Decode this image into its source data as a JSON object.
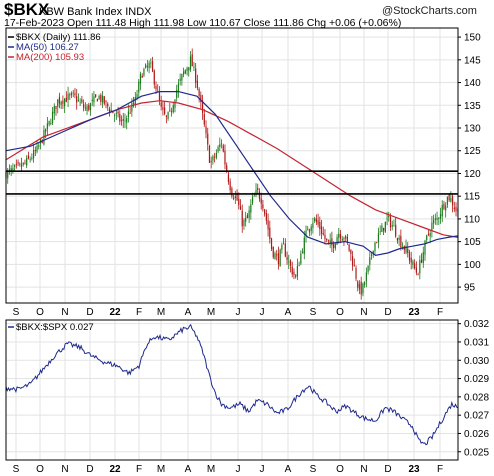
{
  "header": {
    "symbol": "$BKX",
    "name": "KBW Bank Index",
    "exchange": "INDX",
    "watermark": "@StockCharts.com",
    "quote_line": "17-Feb-2023   Open 111.48  High 111.98  Low 110.67  Close 111.86  Chg +0.06 (+0.06%)"
  },
  "colors": {
    "up": "#1a7a1a",
    "down": "#b01818",
    "ma50": "#1f2a8c",
    "ma200": "#c4242e",
    "ratio": "#1f2a8c",
    "grid": "#e3e3e3",
    "hline": "#000000"
  },
  "chart_data": [
    {
      "type": "candlestick",
      "legend": [
        "$BKX (Daily) 111.86",
        "MA(50) 106.27",
        "MA(200) 105.93"
      ],
      "x_tick_labels": [
        "S",
        "O",
        "N",
        "D",
        "22",
        "F",
        "M",
        "A",
        "M",
        "J",
        "J",
        "A",
        "S",
        "O",
        "N",
        "D",
        "23",
        "F"
      ],
      "bold_x_ticks": [
        "22",
        "23"
      ],
      "y_tick_labels": [
        95,
        100,
        105,
        110,
        115,
        120,
        125,
        130,
        135,
        140,
        145,
        150
      ],
      "ylim": [
        91.5,
        152
      ],
      "horizontal_lines": [
        115.5,
        120.5
      ],
      "close_path": [
        [
          0,
          120
        ],
        [
          8,
          121
        ],
        [
          15,
          122
        ],
        [
          25,
          125
        ],
        [
          35,
          131
        ],
        [
          42,
          136
        ],
        [
          55,
          137
        ],
        [
          65,
          134
        ],
        [
          75,
          137
        ],
        [
          85,
          134
        ],
        [
          95,
          131
        ],
        [
          105,
          136
        ],
        [
          110,
          142
        ],
        [
          117,
          144
        ],
        [
          121,
          140
        ],
        [
          126,
          134
        ],
        [
          130,
          132
        ],
        [
          133,
          133
        ],
        [
          138,
          138
        ],
        [
          144,
          142
        ],
        [
          150,
          145
        ],
        [
          155,
          140
        ],
        [
          160,
          132
        ],
        [
          163,
          127
        ],
        [
          166,
          122
        ],
        [
          170,
          124
        ],
        [
          175,
          127
        ],
        [
          178,
          122
        ],
        [
          183,
          116
        ],
        [
          188,
          114
        ],
        [
          192,
          109
        ],
        [
          196,
          110
        ],
        [
          200,
          114
        ],
        [
          204,
          116
        ],
        [
          208,
          114
        ],
        [
          212,
          109
        ],
        [
          216,
          103
        ],
        [
          221,
          101
        ],
        [
          225,
          104
        ],
        [
          230,
          100
        ],
        [
          235,
          97
        ],
        [
          240,
          103
        ],
        [
          245,
          108
        ],
        [
          250,
          110
        ],
        [
          255,
          108
        ],
        [
          260,
          105
        ],
        [
          265,
          104
        ],
        [
          270,
          107
        ],
        [
          275,
          106
        ],
        [
          279,
          103
        ],
        [
          283,
          99
        ],
        [
          286,
          95
        ],
        [
          289,
          94
        ],
        [
          292,
          97
        ],
        [
          295,
          100
        ],
        [
          298,
          104
        ],
        [
          302,
          106
        ],
        [
          306,
          108
        ],
        [
          310,
          110
        ],
        [
          315,
          108
        ],
        [
          320,
          105
        ],
        [
          325,
          103
        ],
        [
          330,
          100
        ],
        [
          334,
          98
        ],
        [
          338,
          102
        ],
        [
          342,
          106
        ],
        [
          346,
          109
        ],
        [
          350,
          110
        ],
        [
          355,
          113
        ],
        [
          359,
          115
        ],
        [
          362,
          114
        ],
        [
          365,
          112
        ],
        [
          367,
          111.86
        ]
      ],
      "ma50": [
        [
          0,
          125
        ],
        [
          20,
          126
        ],
        [
          45,
          129
        ],
        [
          70,
          132
        ],
        [
          90,
          134
        ],
        [
          110,
          137
        ],
        [
          125,
          138
        ],
        [
          140,
          138
        ],
        [
          155,
          137
        ],
        [
          170,
          133
        ],
        [
          185,
          127
        ],
        [
          200,
          121
        ],
        [
          215,
          115
        ],
        [
          230,
          110
        ],
        [
          245,
          106
        ],
        [
          260,
          104.5
        ],
        [
          275,
          105
        ],
        [
          290,
          104
        ],
        [
          300,
          102
        ],
        [
          310,
          102.5
        ],
        [
          320,
          103.5
        ],
        [
          330,
          104
        ],
        [
          340,
          104.5
        ],
        [
          350,
          105.5
        ],
        [
          360,
          106
        ],
        [
          367,
          106.27
        ]
      ],
      "ma200": [
        [
          0,
          123
        ],
        [
          30,
          128
        ],
        [
          60,
          131
        ],
        [
          90,
          134
        ],
        [
          110,
          135.5
        ],
        [
          125,
          136
        ],
        [
          140,
          135.5
        ],
        [
          160,
          134
        ],
        [
          180,
          131.5
        ],
        [
          200,
          128.5
        ],
        [
          220,
          125.5
        ],
        [
          240,
          122
        ],
        [
          260,
          118.5
        ],
        [
          280,
          115
        ],
        [
          300,
          112
        ],
        [
          320,
          110
        ],
        [
          340,
          108
        ],
        [
          355,
          106.5
        ],
        [
          367,
          105.93
        ]
      ]
    },
    {
      "type": "line",
      "legend": [
        "$BKX:$SPX 0.027"
      ],
      "x_tick_labels": [
        "S",
        "O",
        "N",
        "D",
        "22",
        "F",
        "M",
        "A",
        "M",
        "J",
        "J",
        "A",
        "S",
        "O",
        "N",
        "D",
        "23",
        "F"
      ],
      "bold_x_ticks": [
        "22",
        "23"
      ],
      "y_tick_labels": [
        "0.025",
        "0.026",
        "0.027",
        "0.028",
        "0.029",
        "0.030",
        "0.031",
        "0.032"
      ],
      "ylim": [
        0.02455,
        0.0322
      ],
      "points": [
        [
          0,
          0.0285
        ],
        [
          10,
          0.0284
        ],
        [
          20,
          0.0287
        ],
        [
          30,
          0.0295
        ],
        [
          40,
          0.0303
        ],
        [
          50,
          0.0309
        ],
        [
          60,
          0.0307
        ],
        [
          70,
          0.0302
        ],
        [
          80,
          0.0299
        ],
        [
          90,
          0.0297
        ],
        [
          100,
          0.0293
        ],
        [
          108,
          0.0297
        ],
        [
          114,
          0.0308
        ],
        [
          120,
          0.0313
        ],
        [
          126,
          0.0312
        ],
        [
          132,
          0.0311
        ],
        [
          138,
          0.0314
        ],
        [
          144,
          0.0317
        ],
        [
          150,
          0.0318
        ],
        [
          155,
          0.0313
        ],
        [
          160,
          0.0304
        ],
        [
          165,
          0.0292
        ],
        [
          170,
          0.0282
        ],
        [
          175,
          0.0276
        ],
        [
          182,
          0.0274
        ],
        [
          190,
          0.0276
        ],
        [
          197,
          0.0272
        ],
        [
          204,
          0.0278
        ],
        [
          212,
          0.0276
        ],
        [
          220,
          0.0271
        ],
        [
          228,
          0.0273
        ],
        [
          235,
          0.0279
        ],
        [
          240,
          0.0283
        ],
        [
          246,
          0.0286
        ],
        [
          252,
          0.0281
        ],
        [
          260,
          0.0277
        ],
        [
          268,
          0.0272
        ],
        [
          276,
          0.0275
        ],
        [
          284,
          0.0271
        ],
        [
          292,
          0.0268
        ],
        [
          300,
          0.0267
        ],
        [
          308,
          0.0274
        ],
        [
          315,
          0.0272
        ],
        [
          322,
          0.0268
        ],
        [
          330,
          0.0264
        ],
        [
          335,
          0.0256
        ],
        [
          340,
          0.0254
        ],
        [
          346,
          0.0258
        ],
        [
          352,
          0.0265
        ],
        [
          358,
          0.0272
        ],
        [
          362,
          0.0276
        ],
        [
          365,
          0.0275
        ],
        [
          367,
          0.0274
        ]
      ]
    }
  ]
}
